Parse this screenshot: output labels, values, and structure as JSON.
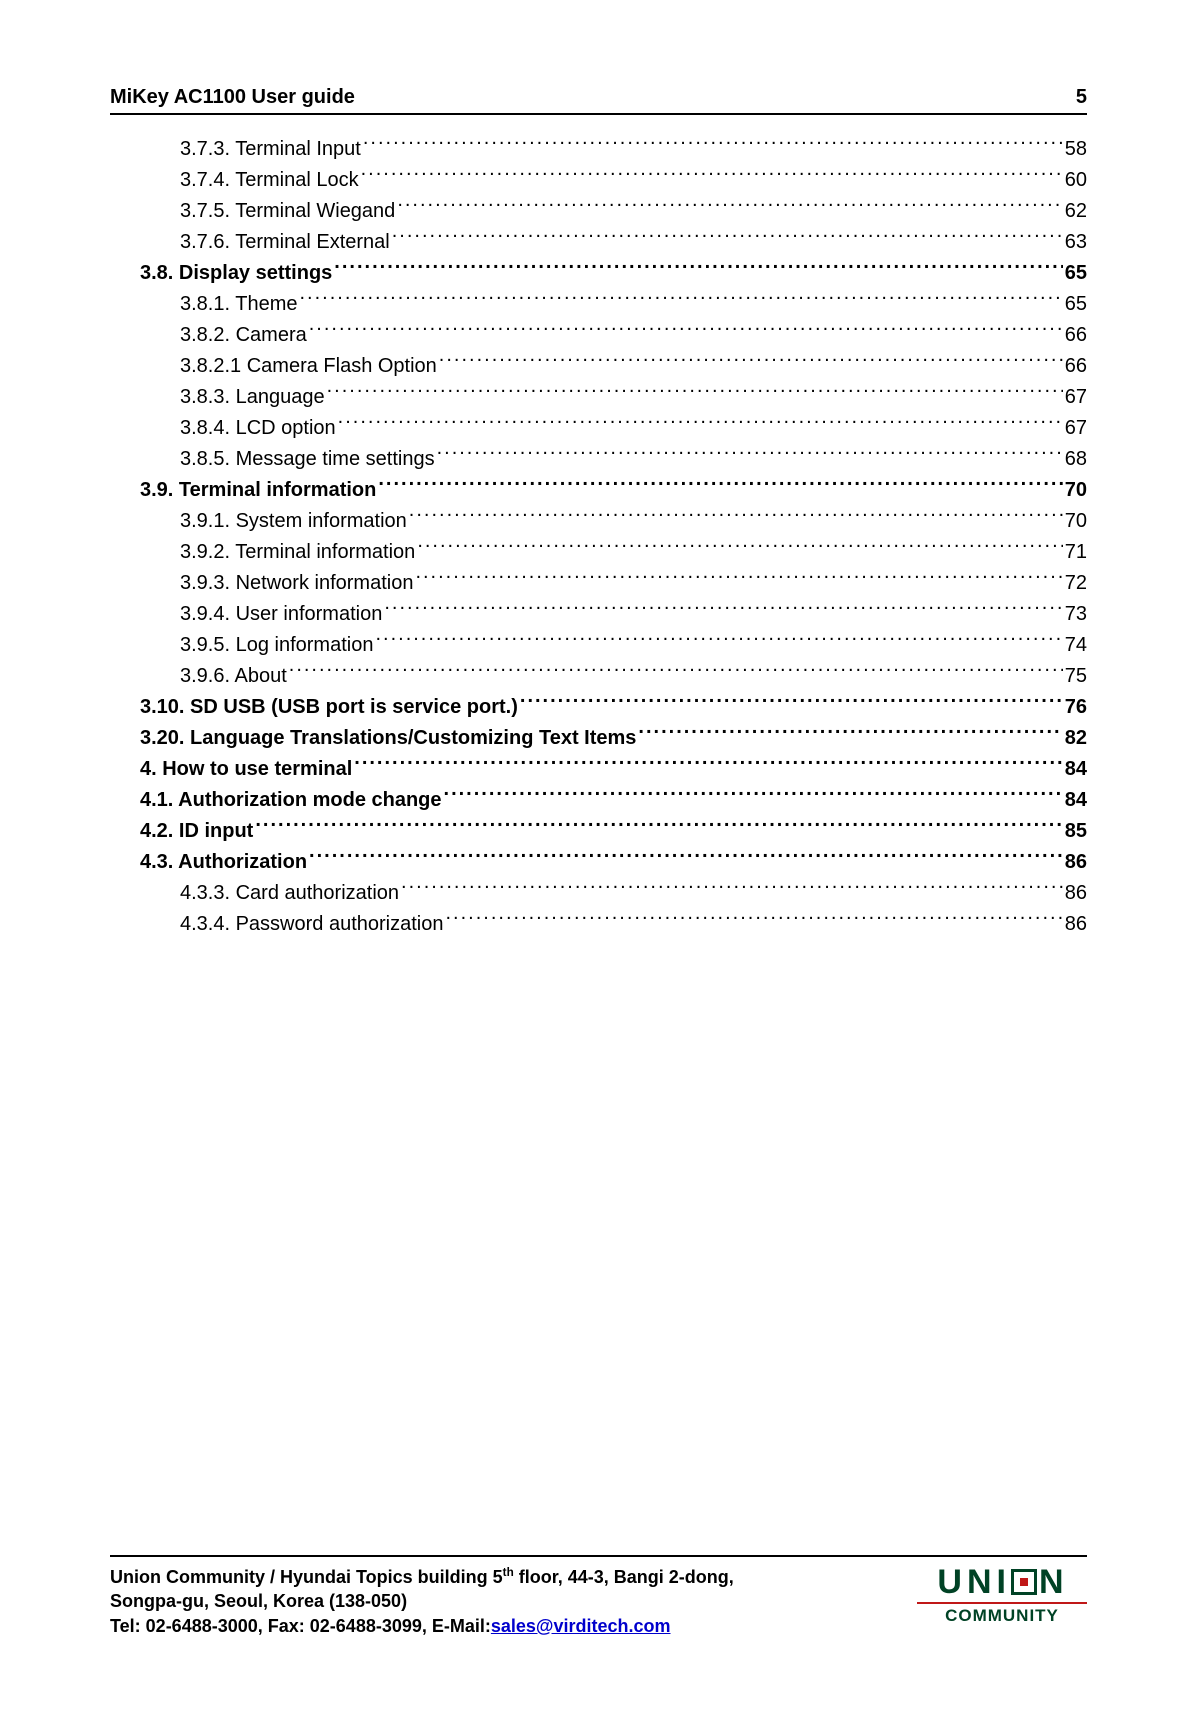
{
  "header": {
    "title": "MiKey AC1100 User guide",
    "page_number": "5"
  },
  "toc": [
    {
      "label": "3.7.3. Terminal Input",
      "page": "58",
      "indent": 1,
      "bold": false
    },
    {
      "label": "3.7.4. Terminal Lock ",
      "page": "60",
      "indent": 1,
      "bold": false
    },
    {
      "label": "3.7.5. Terminal Wiegand",
      "page": "62",
      "indent": 1,
      "bold": false
    },
    {
      "label": "3.7.6. Terminal External",
      "page": "63",
      "indent": 1,
      "bold": false
    },
    {
      "label": "3.8. Display settings ",
      "page": "65",
      "indent": 0,
      "bold": true
    },
    {
      "label": "3.8.1. Theme ",
      "page": "65",
      "indent": 1,
      "bold": false
    },
    {
      "label": "3.8.2. Camera",
      "page": "66",
      "indent": 1,
      "bold": false
    },
    {
      "label": "3.8.2.1 Camera Flash Option",
      "page": "66",
      "indent": 1,
      "bold": false
    },
    {
      "label": "3.8.3. Language ",
      "page": "67",
      "indent": 1,
      "bold": false
    },
    {
      "label": "3.8.4. LCD option ",
      "page": "67",
      "indent": 1,
      "bold": false
    },
    {
      "label": "3.8.5. Message time settings ",
      "page": "68",
      "indent": 1,
      "bold": false
    },
    {
      "label": "3.9. Terminal information",
      "page": "70",
      "indent": 0,
      "bold": true
    },
    {
      "label": "3.9.1. System information",
      "page": "70",
      "indent": 1,
      "bold": false
    },
    {
      "label": "3.9.2. Terminal information ",
      "page": "71",
      "indent": 1,
      "bold": false
    },
    {
      "label": "3.9.3. Network information",
      "page": "72",
      "indent": 1,
      "bold": false
    },
    {
      "label": "3.9.4. User information ",
      "page": "73",
      "indent": 1,
      "bold": false
    },
    {
      "label": "3.9.5. Log information",
      "page": "74",
      "indent": 1,
      "bold": false
    },
    {
      "label": "3.9.6. About ",
      "page": "75",
      "indent": 1,
      "bold": false
    },
    {
      "label": "3.10. SD USB (USB port is service port.)",
      "page": "76",
      "indent": 0,
      "bold": true
    },
    {
      "label": "3.20. Language Translations/Customizing Text Items",
      "page": "82",
      "indent": 0,
      "bold": true
    },
    {
      "label": "4. How to use terminal",
      "page": "84",
      "indent": 0,
      "bold": true
    },
    {
      "label": "4.1. Authorization mode change ",
      "page": "84",
      "indent": 0,
      "bold": true
    },
    {
      "label": "4.2. ID input ",
      "page": "85",
      "indent": 0,
      "bold": true
    },
    {
      "label": "4.3. Authorization",
      "page": "86",
      "indent": 0,
      "bold": true
    },
    {
      "label": "4.3.3. Card authorization ",
      "page": "86",
      "indent": 1,
      "bold": false
    },
    {
      "label": "4.3.4. Password authorization ",
      "page": "86",
      "indent": 1,
      "bold": false
    }
  ],
  "footer": {
    "line1_before": "Union Community / Hyundai Topics building 5",
    "line1_sup": "th",
    "line1_after": " floor, 44-3, Bangi 2-dong,",
    "line2": "Songpa-gu, Seoul, Korea (138-050)",
    "line3_before": "Tel: 02-6488-3000, Fax: 02-6488-3099, E-Mail:",
    "email": "sales@virditech.com",
    "logo_top": "UNI   N",
    "logo_bottom": "COMMUNITY"
  },
  "colors": {
    "text": "#000000",
    "link": "#0000cc",
    "logo_green": "#004225",
    "logo_red": "#c01818",
    "background": "#ffffff"
  },
  "typography": {
    "body_fontsize": 20,
    "footer_fontsize": 18
  }
}
